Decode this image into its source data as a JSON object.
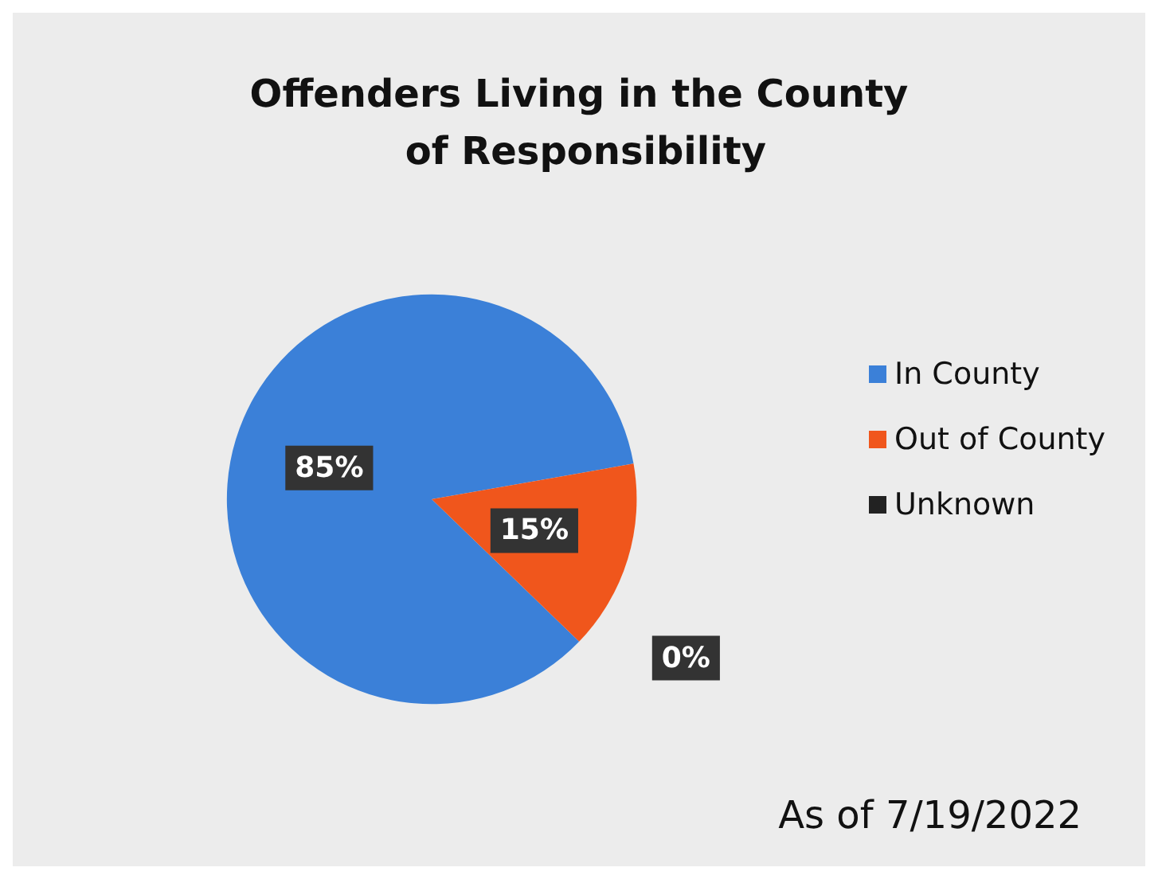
{
  "chart_data": {
    "type": "pie",
    "title": "Offenders Living in the County of Responsibility",
    "categories": [
      "In County",
      "Out of County",
      "Unknown"
    ],
    "values": [
      85,
      15,
      0
    ],
    "colors": [
      "#3b80d8",
      "#f0561c",
      "#222222"
    ],
    "value_labels": [
      "85%",
      "15%",
      "0%"
    ],
    "legend": "right",
    "annotations": [
      "As of 7/19/2022"
    ]
  }
}
